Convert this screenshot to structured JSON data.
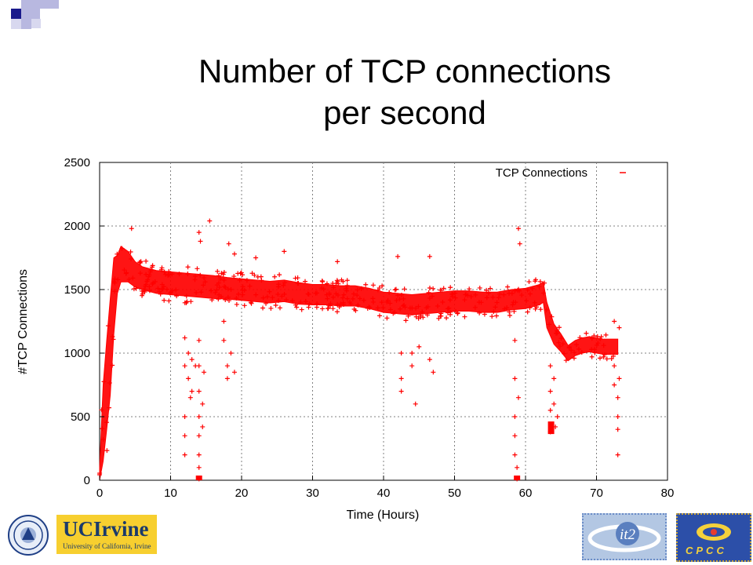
{
  "slide": {
    "title_line1": "Number of TCP connections",
    "title_line2": "per second"
  },
  "colors": {
    "series": "#ff0000",
    "grid": "#808080",
    "corner_dark": "#1a1a8c",
    "corner_light": "#b8b8e0"
  },
  "logos": {
    "uci_name": "UCIrvine",
    "uci_sub": "University of California, Irvine",
    "it2": "it2",
    "cpcc": "CPCC"
  },
  "chart_data": {
    "type": "scatter",
    "title": "",
    "xlabel": "Time (Hours)",
    "ylabel": "#TCP Connections",
    "xlim": [
      0,
      80
    ],
    "ylim": [
      0,
      2500
    ],
    "xticks": [
      0,
      10,
      20,
      30,
      40,
      50,
      60,
      70,
      80
    ],
    "yticks": [
      0,
      500,
      1000,
      1500,
      2000,
      2500
    ],
    "grid": true,
    "legend_position": "top-right",
    "series": [
      {
        "name": "TCP Connections",
        "marker": "+",
        "trend": {
          "x": [
            0,
            0.5,
            1,
            1.5,
            2,
            2.5,
            3,
            4,
            5,
            6,
            8,
            10,
            12,
            14,
            16,
            18,
            20,
            22,
            24,
            26,
            28,
            30,
            32,
            34,
            36,
            38,
            40,
            42,
            44,
            46,
            48,
            50,
            52,
            54,
            56,
            58,
            60,
            62,
            62.5,
            63,
            64,
            65,
            66,
            67,
            68,
            69,
            70,
            71,
            72,
            73
          ],
          "y": [
            50,
            450,
            750,
            1050,
            1450,
            1620,
            1700,
            1680,
            1620,
            1590,
            1560,
            1550,
            1540,
            1530,
            1520,
            1510,
            1500,
            1490,
            1480,
            1490,
            1470,
            1460,
            1460,
            1450,
            1450,
            1430,
            1400,
            1390,
            1380,
            1390,
            1400,
            1410,
            1410,
            1400,
            1400,
            1420,
            1430,
            1460,
            1480,
            1300,
            1150,
            1080,
            1000,
            1040,
            1060,
            1070,
            1060,
            1050,
            1050,
            1050
          ],
          "spread": [
            50,
            300,
            350,
            380,
            300,
            150,
            140,
            120,
            100,
            90,
            90,
            90,
            90,
            90,
            90,
            85,
            85,
            85,
            85,
            85,
            85,
            80,
            80,
            80,
            80,
            80,
            80,
            80,
            80,
            80,
            80,
            80,
            80,
            80,
            80,
            80,
            80,
            80,
            80,
            100,
            80,
            70,
            60,
            60,
            60,
            60,
            60,
            60,
            60,
            60
          ]
        },
        "outliers": [
          {
            "x": 4.5,
            "y": 1980
          },
          {
            "x": 15.5,
            "y": 2040
          },
          {
            "x": 14,
            "y": 1950
          },
          {
            "x": 14.2,
            "y": 1880
          },
          {
            "x": 18.2,
            "y": 1860
          },
          {
            "x": 19,
            "y": 1780
          },
          {
            "x": 22,
            "y": 1750
          },
          {
            "x": 26,
            "y": 1800
          },
          {
            "x": 33.5,
            "y": 1720
          },
          {
            "x": 42,
            "y": 1760
          },
          {
            "x": 46.5,
            "y": 1760
          },
          {
            "x": 59,
            "y": 1980
          },
          {
            "x": 59.2,
            "y": 1860
          },
          {
            "x": 12,
            "y": 1120
          },
          {
            "x": 12,
            "y": 900
          },
          {
            "x": 12,
            "y": 500
          },
          {
            "x": 12,
            "y": 350
          },
          {
            "x": 12,
            "y": 200
          },
          {
            "x": 12.5,
            "y": 1000
          },
          {
            "x": 12.5,
            "y": 800
          },
          {
            "x": 12.8,
            "y": 650
          },
          {
            "x": 13,
            "y": 950
          },
          {
            "x": 13,
            "y": 700
          },
          {
            "x": 13.5,
            "y": 900
          },
          {
            "x": 14,
            "y": 1100
          },
          {
            "x": 14,
            "y": 900
          },
          {
            "x": 14,
            "y": 700
          },
          {
            "x": 14,
            "y": 500
          },
          {
            "x": 14,
            "y": 350
          },
          {
            "x": 14,
            "y": 200
          },
          {
            "x": 14,
            "y": 100
          },
          {
            "x": 14,
            "y": 10
          },
          {
            "x": 14.5,
            "y": 600
          },
          {
            "x": 14.5,
            "y": 420
          },
          {
            "x": 14.7,
            "y": 850
          },
          {
            "x": 17.5,
            "y": 1250
          },
          {
            "x": 17.5,
            "y": 1100
          },
          {
            "x": 18,
            "y": 900
          },
          {
            "x": 18,
            "y": 800
          },
          {
            "x": 18.5,
            "y": 1000
          },
          {
            "x": 19,
            "y": 850
          },
          {
            "x": 42.5,
            "y": 1000
          },
          {
            "x": 42.5,
            "y": 800
          },
          {
            "x": 42.5,
            "y": 700
          },
          {
            "x": 44,
            "y": 1000
          },
          {
            "x": 44,
            "y": 900
          },
          {
            "x": 44.5,
            "y": 600
          },
          {
            "x": 45,
            "y": 1050
          },
          {
            "x": 46.5,
            "y": 950
          },
          {
            "x": 47,
            "y": 850
          },
          {
            "x": 58.5,
            "y": 1100
          },
          {
            "x": 58.5,
            "y": 800
          },
          {
            "x": 58.5,
            "y": 500
          },
          {
            "x": 58.5,
            "y": 350
          },
          {
            "x": 58.5,
            "y": 200
          },
          {
            "x": 58.8,
            "y": 100
          },
          {
            "x": 58.8,
            "y": 10
          },
          {
            "x": 59,
            "y": 650
          },
          {
            "x": 63.5,
            "y": 900
          },
          {
            "x": 63.5,
            "y": 700
          },
          {
            "x": 63.5,
            "y": 550
          },
          {
            "x": 63.5,
            "y": 380
          },
          {
            "x": 64,
            "y": 800
          },
          {
            "x": 64,
            "y": 600
          },
          {
            "x": 64.5,
            "y": 500
          },
          {
            "x": 64.2,
            "y": 420
          },
          {
            "x": 72.5,
            "y": 900
          },
          {
            "x": 72.5,
            "y": 750
          },
          {
            "x": 73,
            "y": 650
          },
          {
            "x": 73,
            "y": 500
          },
          {
            "x": 73,
            "y": 400
          },
          {
            "x": 73,
            "y": 200
          },
          {
            "x": 73.2,
            "y": 800
          },
          {
            "x": 73.2,
            "y": 1200
          },
          {
            "x": 72.5,
            "y": 1250
          }
        ]
      }
    ]
  }
}
